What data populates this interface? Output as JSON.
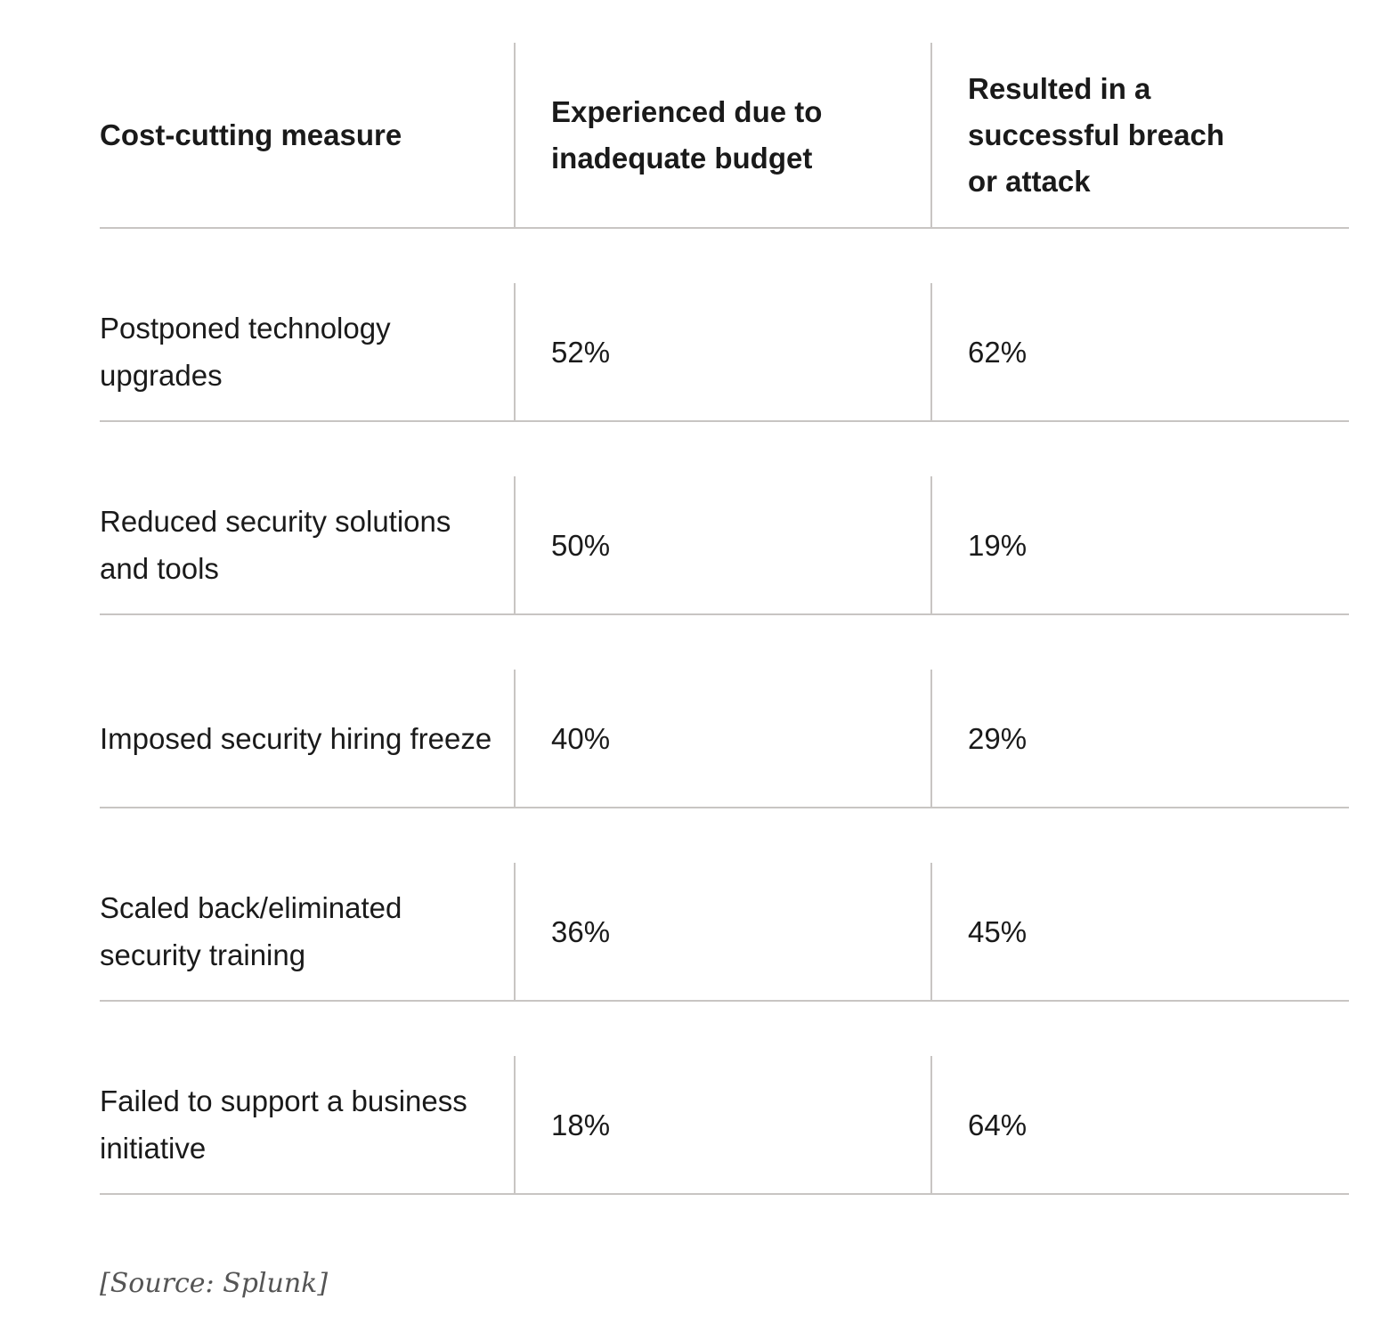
{
  "table": {
    "headers": [
      "Cost-cutting measure",
      "Experienced due to inadequate budget",
      "Resulted in a successful breach or attack"
    ],
    "rows": [
      [
        "Postponed technology upgrades",
        "52%",
        "62%"
      ],
      [
        "Reduced security solutions and tools",
        "50%",
        "19%"
      ],
      [
        "Imposed security hiring freeze",
        "40%",
        "29%"
      ],
      [
        "Scaled back/eliminated security training",
        "36%",
        "45%"
      ],
      [
        "Failed to support a business initiative",
        "18%",
        "64%"
      ]
    ]
  },
  "source": "[Source: Splunk]"
}
